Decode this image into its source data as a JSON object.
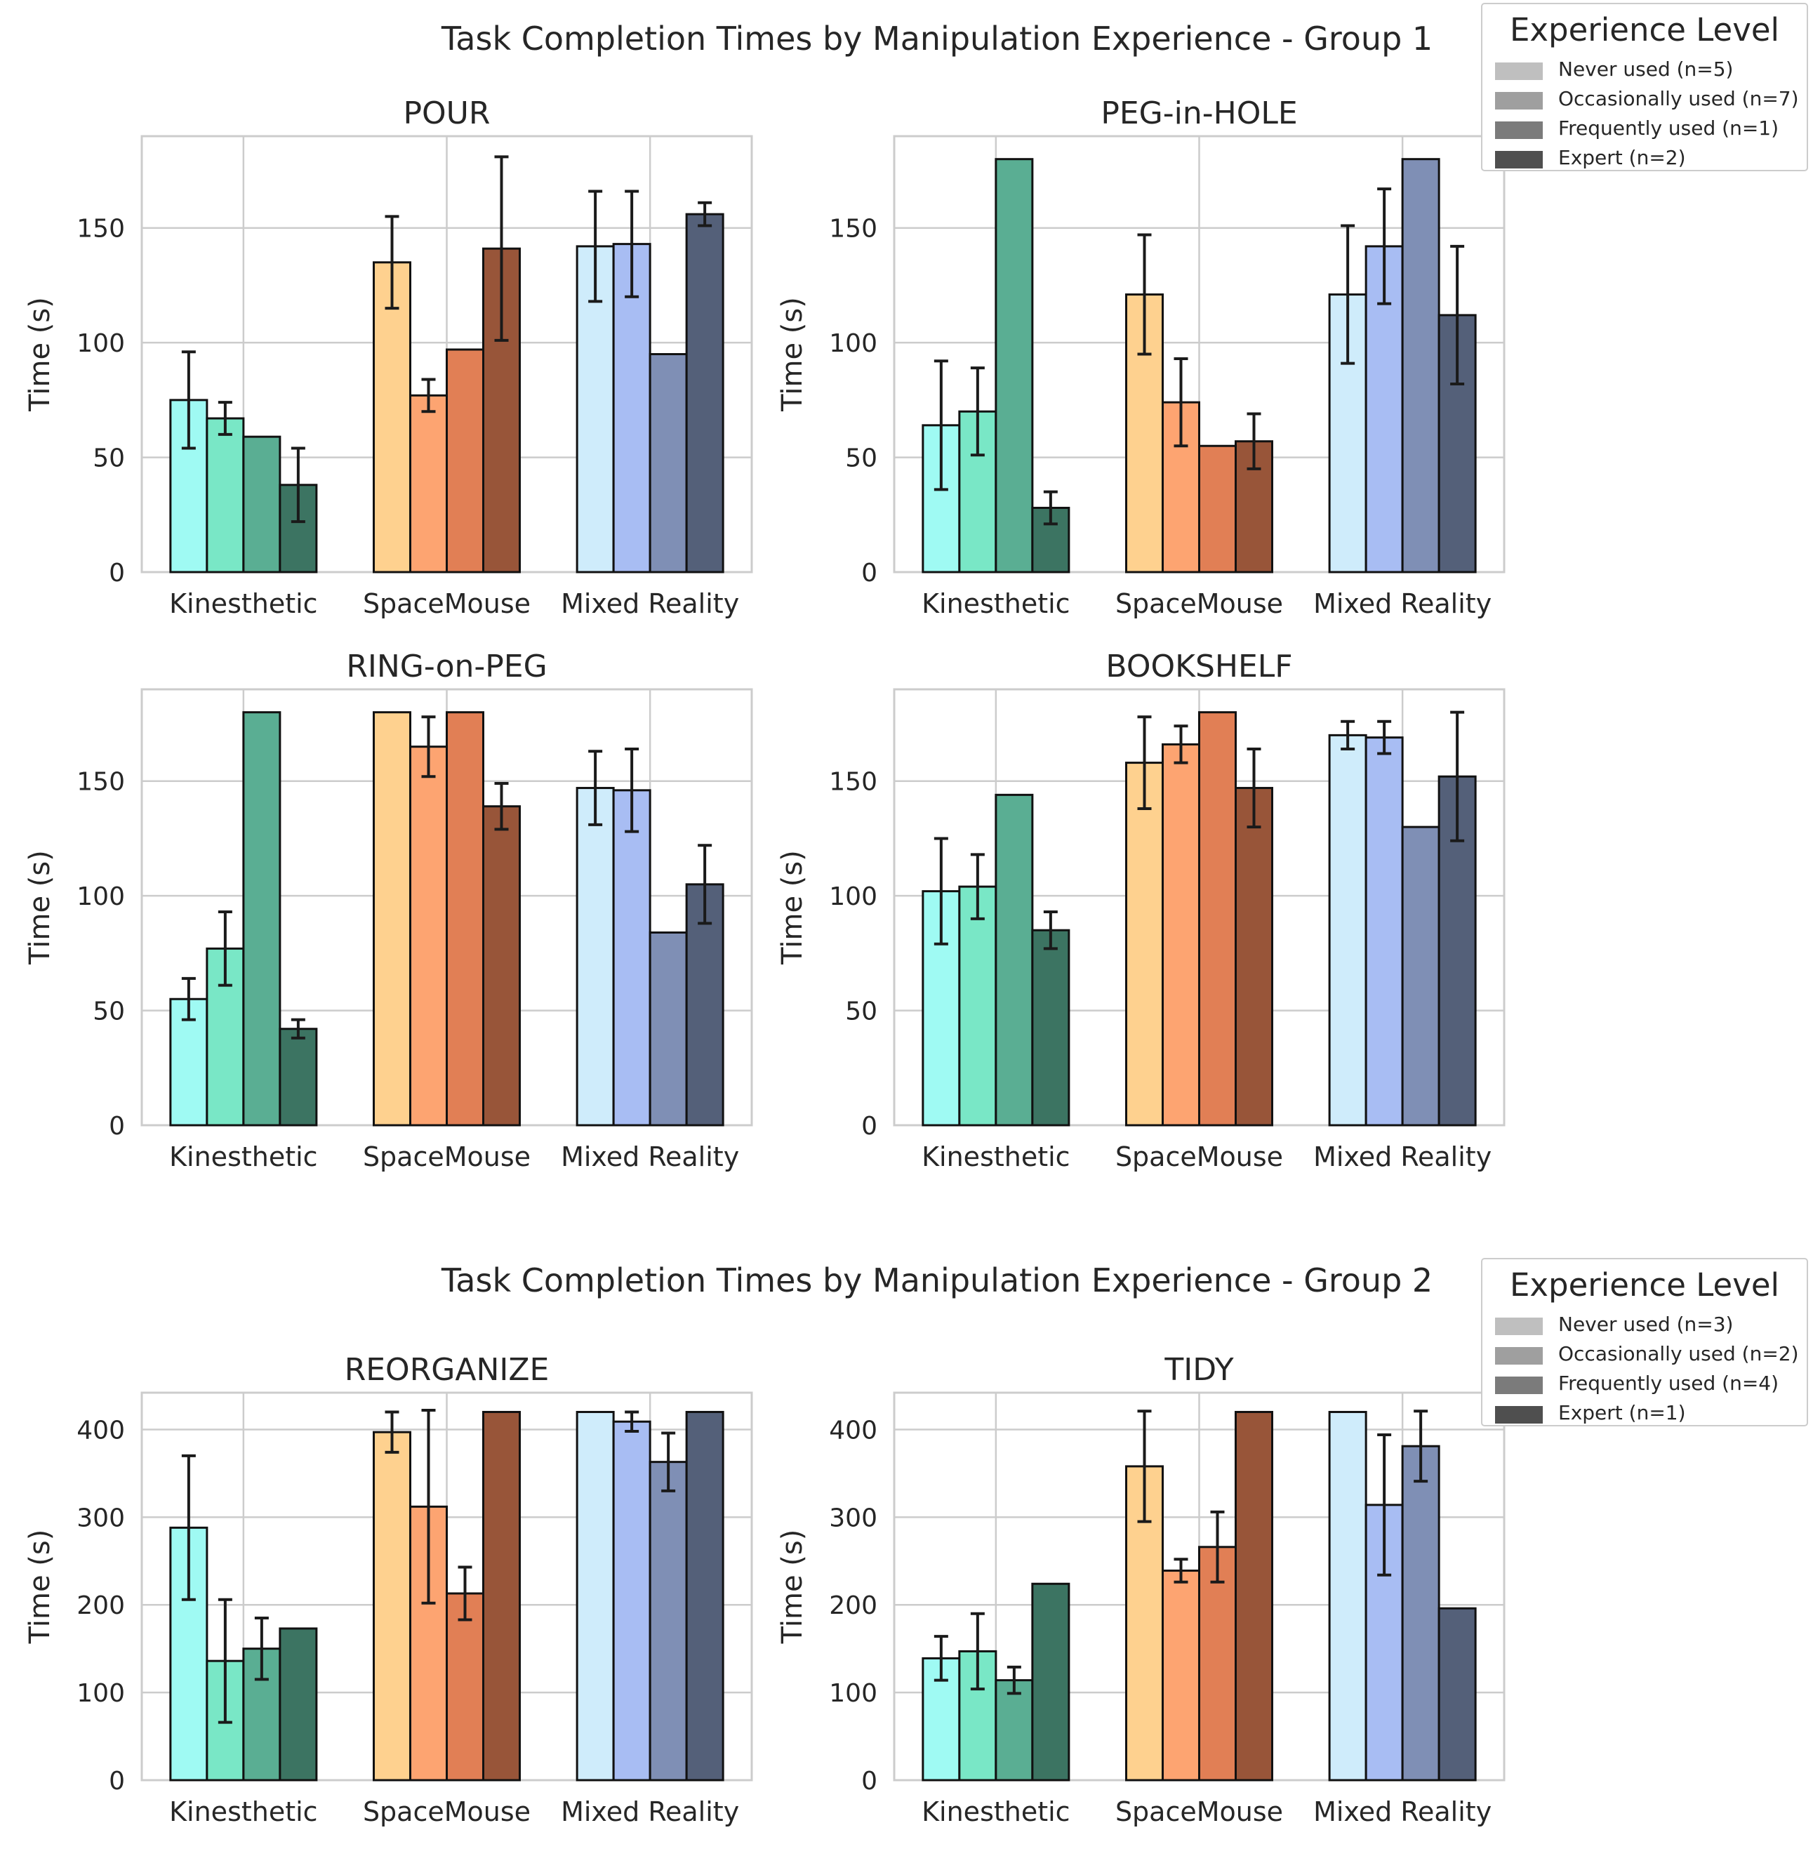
{
  "colors": {
    "Kinesthetic": [
      "#9ffaf3",
      "#79e7c6",
      "#5aae93",
      "#3c7462"
    ],
    "SpaceMouse": [
      "#fed18f",
      "#fda471",
      "#e17f55",
      "#985539"
    ],
    "Mixed Reality": [
      "#cfecfb",
      "#a8bdf3",
      "#7f8fb5",
      "#546079"
    ],
    "legend_swatches": [
      "#bfbfbf",
      "#9f9f9f",
      "#7b7b7b",
      "#4f4f4f"
    ]
  },
  "groups": [
    {
      "title": "Task Completion Times by Manipulation Experience - Group 1",
      "legend": {
        "title": "Experience Level",
        "entries": [
          "Never used (n=5)",
          "Occasionally used (n=7)",
          "Frequently used (n=1)",
          "Expert (n=2)"
        ]
      }
    },
    {
      "title": "Task Completion Times by Manipulation Experience - Group 2",
      "legend": {
        "title": "Experience Level",
        "entries": [
          "Never used (n=3)",
          "Occasionally used (n=2)",
          "Frequently used (n=4)",
          "Expert (n=1)"
        ]
      }
    }
  ],
  "chart_data": [
    {
      "type": "bar",
      "group": 1,
      "title": "POUR",
      "ylabel": "Time (s)",
      "xlabel": "",
      "categories": [
        "Kinesthetic",
        "SpaceMouse",
        "Mixed Reality"
      ],
      "ylim": [
        0,
        190
      ],
      "yticks": [
        0,
        50,
        100,
        150
      ],
      "grid": true,
      "series": [
        {
          "name": "Never used",
          "values": [
            75,
            135,
            142
          ],
          "err": [
            21,
            20,
            24
          ]
        },
        {
          "name": "Occasionally used",
          "values": [
            67,
            77,
            143
          ],
          "err": [
            7,
            7,
            23
          ]
        },
        {
          "name": "Frequently used",
          "values": [
            59,
            97,
            95
          ],
          "err": [
            null,
            null,
            null
          ]
        },
        {
          "name": "Expert",
          "values": [
            38,
            141,
            156
          ],
          "err": [
            16,
            40,
            5
          ]
        }
      ]
    },
    {
      "type": "bar",
      "group": 1,
      "title": "PEG-in-HOLE",
      "ylabel": "Time (s)",
      "xlabel": "",
      "categories": [
        "Kinesthetic",
        "SpaceMouse",
        "Mixed Reality"
      ],
      "ylim": [
        0,
        190
      ],
      "yticks": [
        0,
        50,
        100,
        150
      ],
      "grid": true,
      "series": [
        {
          "name": "Never used",
          "values": [
            64,
            121,
            121
          ],
          "err": [
            28,
            26,
            30
          ]
        },
        {
          "name": "Occasionally used",
          "values": [
            70,
            74,
            142
          ],
          "err": [
            19,
            19,
            25
          ]
        },
        {
          "name": "Frequently used",
          "values": [
            180,
            55,
            180
          ],
          "err": [
            null,
            null,
            null
          ]
        },
        {
          "name": "Expert",
          "values": [
            28,
            57,
            112
          ],
          "err": [
            7,
            12,
            30
          ]
        }
      ]
    },
    {
      "type": "bar",
      "group": 1,
      "title": "RING-on-PEG",
      "ylabel": "Time (s)",
      "xlabel": "",
      "categories": [
        "Kinesthetic",
        "SpaceMouse",
        "Mixed Reality"
      ],
      "ylim": [
        0,
        190
      ],
      "yticks": [
        0,
        50,
        100,
        150
      ],
      "grid": true,
      "series": [
        {
          "name": "Never used",
          "values": [
            55,
            180,
            147
          ],
          "err": [
            9,
            null,
            16
          ]
        },
        {
          "name": "Occasionally used",
          "values": [
            77,
            165,
            146
          ],
          "err": [
            16,
            13,
            18
          ]
        },
        {
          "name": "Frequently used",
          "values": [
            180,
            180,
            84
          ],
          "err": [
            null,
            null,
            null
          ]
        },
        {
          "name": "Expert",
          "values": [
            42,
            139,
            105
          ],
          "err": [
            4,
            10,
            17
          ]
        }
      ]
    },
    {
      "type": "bar",
      "group": 1,
      "title": "BOOKSHELF",
      "ylabel": "Time (s)",
      "xlabel": "",
      "categories": [
        "Kinesthetic",
        "SpaceMouse",
        "Mixed Reality"
      ],
      "ylim": [
        0,
        190
      ],
      "yticks": [
        0,
        50,
        100,
        150
      ],
      "grid": true,
      "series": [
        {
          "name": "Never used",
          "values": [
            102,
            158,
            170
          ],
          "err": [
            23,
            20,
            6
          ]
        },
        {
          "name": "Occasionally used",
          "values": [
            104,
            166,
            169
          ],
          "err": [
            14,
            8,
            7
          ]
        },
        {
          "name": "Frequently used",
          "values": [
            144,
            180,
            130
          ],
          "err": [
            null,
            null,
            null
          ]
        },
        {
          "name": "Expert",
          "values": [
            85,
            147,
            152
          ],
          "err": [
            8,
            17,
            28
          ]
        }
      ]
    },
    {
      "type": "bar",
      "group": 2,
      "title": "REORGANIZE",
      "ylabel": "Time (s)",
      "xlabel": "",
      "categories": [
        "Kinesthetic",
        "SpaceMouse",
        "Mixed Reality"
      ],
      "ylim": [
        0,
        442
      ],
      "yticks": [
        0,
        100,
        200,
        300,
        400
      ],
      "grid": true,
      "series": [
        {
          "name": "Never used",
          "values": [
            288,
            397,
            420
          ],
          "err": [
            82,
            23,
            null
          ]
        },
        {
          "name": "Occasionally used",
          "values": [
            136,
            312,
            409
          ],
          "err": [
            70,
            110,
            11
          ]
        },
        {
          "name": "Frequently used",
          "values": [
            150,
            213,
            363
          ],
          "err": [
            35,
            30,
            33
          ]
        },
        {
          "name": "Expert",
          "values": [
            173,
            420,
            420
          ],
          "err": [
            null,
            null,
            null
          ]
        }
      ]
    },
    {
      "type": "bar",
      "group": 2,
      "title": "TIDY",
      "ylabel": "Time (s)",
      "xlabel": "",
      "categories": [
        "Kinesthetic",
        "SpaceMouse",
        "Mixed Reality"
      ],
      "ylim": [
        0,
        442
      ],
      "yticks": [
        0,
        100,
        200,
        300,
        400
      ],
      "grid": true,
      "series": [
        {
          "name": "Never used",
          "values": [
            139,
            358,
            420
          ],
          "err": [
            25,
            63,
            null
          ]
        },
        {
          "name": "Occasionally used",
          "values": [
            147,
            239,
            314
          ],
          "err": [
            43,
            13,
            80
          ]
        },
        {
          "name": "Frequently used",
          "values": [
            114,
            266,
            381
          ],
          "err": [
            15,
            40,
            40
          ]
        },
        {
          "name": "Expert",
          "values": [
            224,
            420,
            196
          ],
          "err": [
            null,
            null,
            null
          ]
        }
      ]
    }
  ]
}
